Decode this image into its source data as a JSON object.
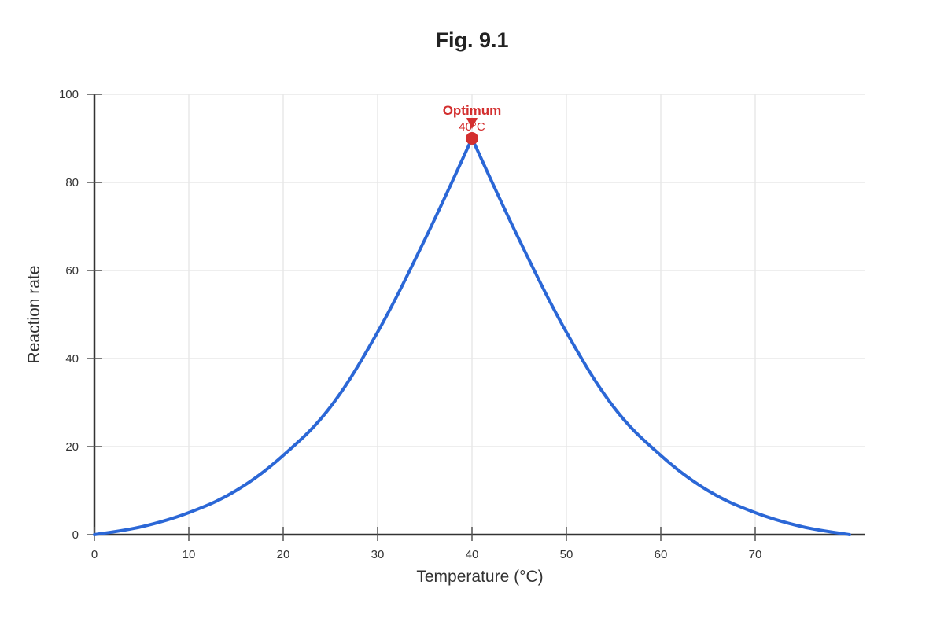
{
  "chart_data": {
    "type": "line",
    "title": "Fig. 9.1",
    "xlabel": "Temperature (°C)",
    "ylabel": "Reaction rate",
    "xlim": [
      0,
      82
    ],
    "ylim": [
      0,
      100
    ],
    "x_ticks": [
      0,
      10,
      20,
      30,
      40,
      50,
      60,
      70
    ],
    "y_ticks": [
      0,
      20,
      40,
      60,
      80,
      100
    ],
    "grid": true,
    "legend": "none",
    "series": [
      {
        "color": "#2b67d6",
        "x": [
          0,
          5,
          10,
          15,
          20,
          25,
          30,
          35,
          40,
          45,
          50,
          55,
          60,
          65,
          70,
          75,
          80
        ],
        "y": [
          0,
          1.8,
          5,
          10,
          18,
          29,
          46,
          67,
          90,
          67,
          46,
          29,
          18,
          10,
          5,
          1.8,
          0
        ]
      }
    ],
    "annotations": [
      {
        "label": "Optimum",
        "sublabel": "40°C",
        "x": 40,
        "y": 90,
        "color": "#d32f2f"
      }
    ]
  }
}
